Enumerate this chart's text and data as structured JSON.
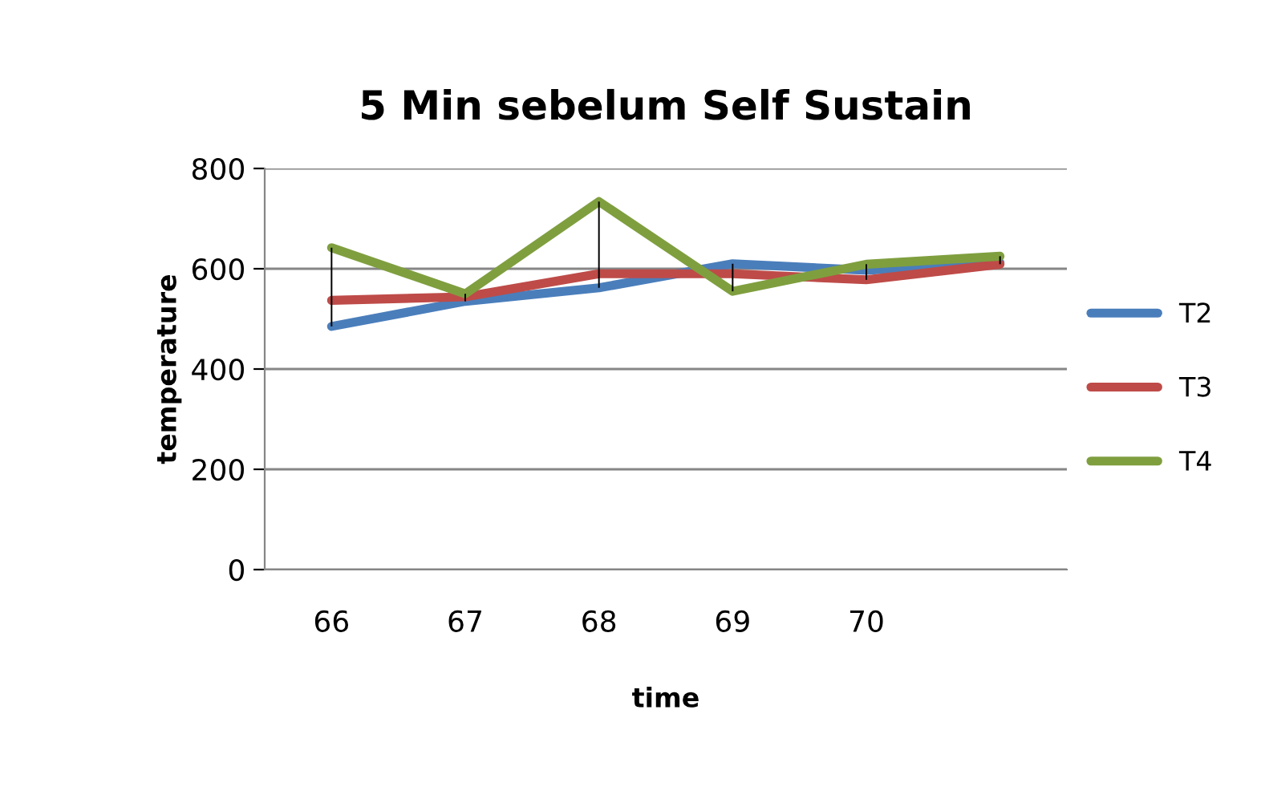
{
  "chart_data": {
    "type": "line",
    "title": "5 Min sebelum Self Sustain",
    "xlabel": "time",
    "ylabel": "temperature",
    "categories": [
      "66",
      "67",
      "68",
      "69",
      "70",
      null
    ],
    "series": [
      {
        "name": "T2",
        "color": "#4a7ebb",
        "values": [
          485,
          535,
          562,
          610,
          597,
          612
        ]
      },
      {
        "name": "T3",
        "color": "#be4b48",
        "values": [
          537,
          544,
          590,
          590,
          578,
          609
        ]
      },
      {
        "name": "T4",
        "color": "#7f9f3f",
        "values": [
          642,
          550,
          734,
          555,
          609,
          625
        ]
      },
      {
        "type": "bar",
        "color": "#000000",
        "base": [
          485,
          535,
          562,
          555,
          578,
          609
        ],
        "values": [
          157,
          15,
          172,
          55,
          31,
          16
        ]
      }
    ],
    "ylim": [
      0,
      800
    ],
    "yticks": [
      0,
      200,
      400,
      600,
      800
    ],
    "grid": "y",
    "legend": "right",
    "marker": "none",
    "line_style": "solid"
  }
}
